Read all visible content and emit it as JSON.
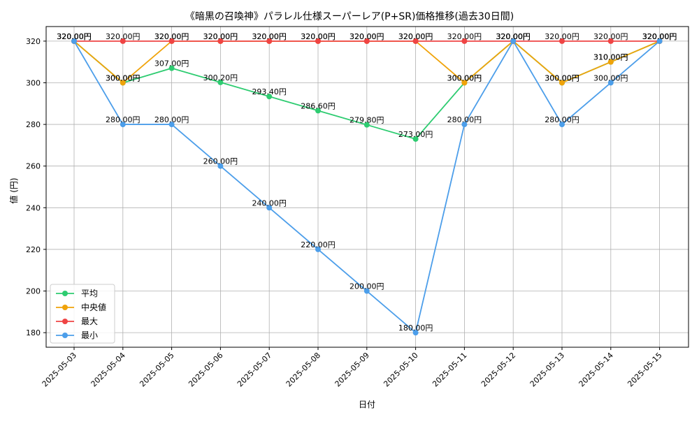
{
  "chart_data": {
    "type": "line",
    "title": "《暗黒の召喚神》パラレル仕様スーパーレア(P+SR)価格推移(過去30日間)",
    "xlabel": "日付",
    "ylabel": "値 (円)",
    "categories": [
      "2025-05-03",
      "2025-05-04",
      "2025-05-05",
      "2025-05-06",
      "2025-05-07",
      "2025-05-08",
      "2025-05-09",
      "2025-05-10",
      "2025-05-11",
      "2025-05-12",
      "2025-05-13",
      "2025-05-14",
      "2025-05-15"
    ],
    "yticks": [
      180,
      200,
      220,
      240,
      260,
      280,
      300,
      320
    ],
    "ylim": [
      173,
      327
    ],
    "grid": true,
    "legend_position": "bottom-left",
    "series": [
      {
        "name": "平均",
        "color": "#2ecc71",
        "values": [
          320,
          300,
          307,
          300.2,
          293.4,
          286.6,
          279.8,
          273,
          300,
          320,
          300,
          310,
          320
        ],
        "labels": [
          "320.00円",
          "300.00円",
          "307.00円",
          "300.20円",
          "293.40円",
          "286.60円",
          "279.80円",
          "273.00円",
          "300.00円",
          "320.00円",
          "300.00円",
          "310.00円",
          "320.00円"
        ]
      },
      {
        "name": "中央値",
        "color": "#f0a30a",
        "values": [
          320,
          300,
          320,
          320,
          320,
          320,
          320,
          320,
          300,
          320,
          300,
          310,
          320
        ],
        "labels": [
          "320.00円",
          "300.00円",
          "320.00円",
          "320.00円",
          "320.00円",
          "320.00円",
          "320.00円",
          "320.00円",
          "300.00円",
          "320.00円",
          "300.00円",
          "310.00円",
          "320.00円"
        ]
      },
      {
        "name": "最大",
        "color": "#ef4444",
        "values": [
          320,
          320,
          320,
          320,
          320,
          320,
          320,
          320,
          320,
          320,
          320,
          320,
          320
        ],
        "labels": [
          "320.00円",
          "320.00円",
          "320.00円",
          "320.00円",
          "320.00円",
          "320.00円",
          "320.00円",
          "320.00円",
          "320.00円",
          "320.00円",
          "320.00円",
          "320.00円",
          "320.00円"
        ]
      },
      {
        "name": "最小",
        "color": "#4c9eea",
        "values": [
          320,
          280,
          280,
          260,
          240,
          220,
          200,
          180,
          280,
          320,
          280,
          300,
          320
        ],
        "labels": [
          "320.00円",
          "280.00円",
          "280.00円",
          "260.00円",
          "240.00円",
          "220.00円",
          "200.00円",
          "180.00円",
          "280.00円",
          "320.00円",
          "280.00円",
          "300.00円",
          "320.00円"
        ]
      }
    ]
  }
}
